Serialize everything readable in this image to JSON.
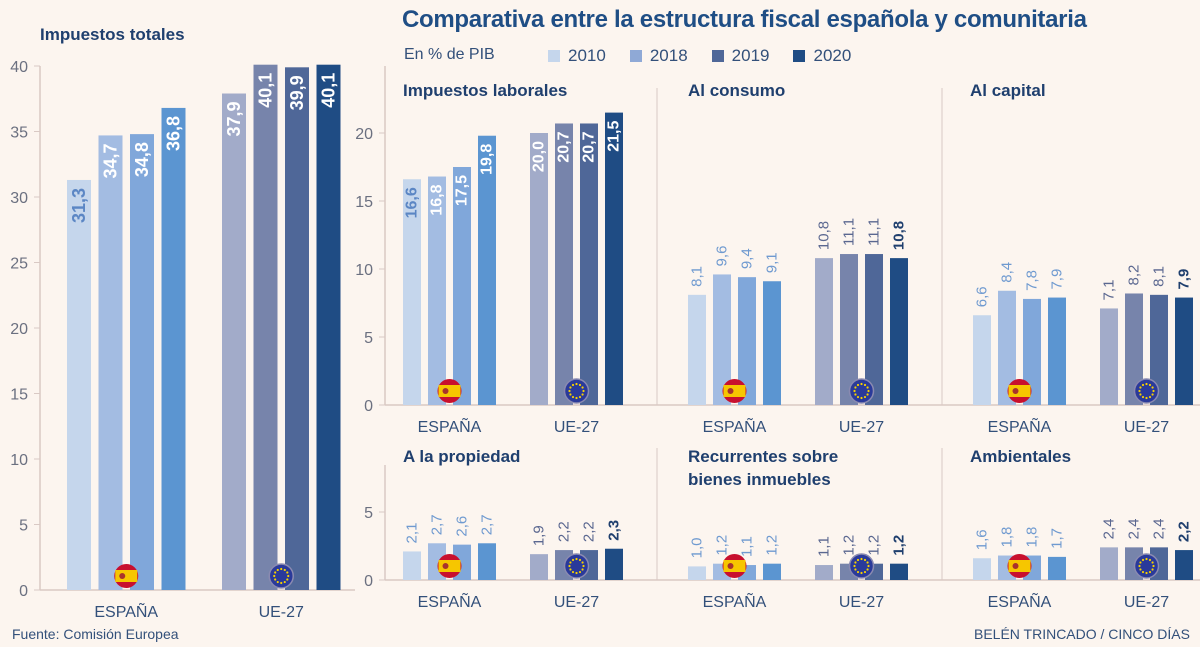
{
  "title": "Comparativa entre la estructura fiscal española y comunitaria",
  "unit_label": "En % de PIB",
  "source": "Fuente: Comisión Europea",
  "credit": "BELÉN TRINCADO / CINCO DÍAS",
  "legend": [
    {
      "label": "2010",
      "color": "#c5d6ec"
    },
    {
      "label": "2018",
      "color": "#a3bce2"
    },
    {
      "label": "2019",
      "color": "#4f6798"
    },
    {
      "label": "2020",
      "color": "#1f4c84"
    }
  ],
  "colors": {
    "ESPAÑA": [
      "#c5d6ec",
      "#a3bce2",
      "#80a7da",
      "#5b95d1"
    ],
    "UE-27": [
      "#a2abc9",
      "#7784ab",
      "#4f6798",
      "#1f4c84"
    ]
  },
  "icons": {
    "ESPAÑA": "spain-flag-icon",
    "UE-27": "eu-flag-icon"
  },
  "chart_data": [
    {
      "type": "bar",
      "title": "Impuestos totales",
      "categories": [
        "ESPAÑA",
        "UE-27"
      ],
      "ylim": [
        0,
        40
      ],
      "yticks": [
        0,
        5,
        10,
        15,
        20,
        25,
        30,
        35,
        40
      ],
      "series": [
        {
          "name": "2010",
          "values": [
            31.3,
            37.9
          ]
        },
        {
          "name": "2018",
          "values": [
            34.7,
            40.1
          ]
        },
        {
          "name": "2019",
          "values": [
            34.8,
            39.9
          ]
        },
        {
          "name": "2020",
          "values": [
            36.8,
            40.1
          ]
        }
      ],
      "labels": [
        [
          "31,3",
          "34,7",
          "34,8",
          "36,8"
        ],
        [
          "37,9",
          "40,1",
          "39,9",
          "40,1"
        ]
      ]
    },
    {
      "type": "bar",
      "title": "Impuestos laborales",
      "categories": [
        "ESPAÑA",
        "UE-27"
      ],
      "ylim": [
        0,
        20
      ],
      "yticks": [
        0,
        5,
        10,
        15,
        20
      ],
      "series": [
        {
          "name": "2010",
          "values": [
            16.6,
            20.0
          ]
        },
        {
          "name": "2018",
          "values": [
            16.8,
            20.7
          ]
        },
        {
          "name": "2019",
          "values": [
            17.5,
            20.7
          ]
        },
        {
          "name": "2020",
          "values": [
            19.8,
            21.5
          ]
        }
      ],
      "labels": [
        [
          "16,6",
          "16,8",
          "17,5",
          "19,8"
        ],
        [
          "20,0",
          "20,7",
          "20,7",
          "21,5"
        ]
      ]
    },
    {
      "type": "bar",
      "title": "Al consumo",
      "categories": [
        "ESPAÑA",
        "UE-27"
      ],
      "ylim": [
        0,
        20
      ],
      "series": [
        {
          "name": "2010",
          "values": [
            8.1,
            10.8
          ]
        },
        {
          "name": "2018",
          "values": [
            9.6,
            11.1
          ]
        },
        {
          "name": "2019",
          "values": [
            9.4,
            11.1
          ]
        },
        {
          "name": "2020",
          "values": [
            9.1,
            10.8
          ]
        }
      ],
      "labels": [
        [
          "8,1",
          "9,6",
          "9,4",
          "9,1"
        ],
        [
          "10,8",
          "11,1",
          "11,1",
          "10,8"
        ]
      ]
    },
    {
      "type": "bar",
      "title": "Al capital",
      "categories": [
        "ESPAÑA",
        "UE-27"
      ],
      "ylim": [
        0,
        20
      ],
      "series": [
        {
          "name": "2010",
          "values": [
            6.6,
            7.1
          ]
        },
        {
          "name": "2018",
          "values": [
            8.4,
            8.2
          ]
        },
        {
          "name": "2019",
          "values": [
            7.8,
            8.1
          ]
        },
        {
          "name": "2020",
          "values": [
            7.9,
            7.9
          ]
        }
      ],
      "labels": [
        [
          "6,6",
          "8,4",
          "7,8",
          "7,9"
        ],
        [
          "7,1",
          "8,2",
          "8,1",
          "7,9"
        ]
      ]
    },
    {
      "type": "bar",
      "title": "A la propiedad",
      "categories": [
        "ESPAÑA",
        "UE-27"
      ],
      "ylim": [
        0,
        5
      ],
      "yticks": [
        0,
        5
      ],
      "series": [
        {
          "name": "2010",
          "values": [
            2.1,
            1.9
          ]
        },
        {
          "name": "2018",
          "values": [
            2.7,
            2.2
          ]
        },
        {
          "name": "2019",
          "values": [
            2.6,
            2.2
          ]
        },
        {
          "name": "2020",
          "values": [
            2.7,
            2.3
          ]
        }
      ],
      "labels": [
        [
          "2,1",
          "2,7",
          "2,6",
          "2,7"
        ],
        [
          "1,9",
          "2,2",
          "2,2",
          "2,3"
        ]
      ]
    },
    {
      "type": "bar",
      "title": "Recurrentes sobre bienes inmuebles",
      "categories": [
        "ESPAÑA",
        "UE-27"
      ],
      "ylim": [
        0,
        5
      ],
      "series": [
        {
          "name": "2010",
          "values": [
            1.0,
            1.1
          ]
        },
        {
          "name": "2018",
          "values": [
            1.2,
            1.2
          ]
        },
        {
          "name": "2019",
          "values": [
            1.1,
            1.2
          ]
        },
        {
          "name": "2020",
          "values": [
            1.2,
            1.2
          ]
        }
      ],
      "labels": [
        [
          "1,0",
          "1,2",
          "1,1",
          "1,2"
        ],
        [
          "1,1",
          "1,2",
          "1,2",
          "1,2"
        ]
      ]
    },
    {
      "type": "bar",
      "title": "Ambientales",
      "categories": [
        "ESPAÑA",
        "UE-27"
      ],
      "ylim": [
        0,
        5
      ],
      "series": [
        {
          "name": "2010",
          "values": [
            1.6,
            2.4
          ]
        },
        {
          "name": "2018",
          "values": [
            1.8,
            2.4
          ]
        },
        {
          "name": "2019",
          "values": [
            1.8,
            2.4
          ]
        },
        {
          "name": "2020",
          "values": [
            1.7,
            2.2
          ]
        }
      ],
      "labels": [
        [
          "1,6",
          "1,8",
          "1,8",
          "1,7"
        ],
        [
          "2,4",
          "2,4",
          "2,4",
          "2,2"
        ]
      ]
    }
  ]
}
